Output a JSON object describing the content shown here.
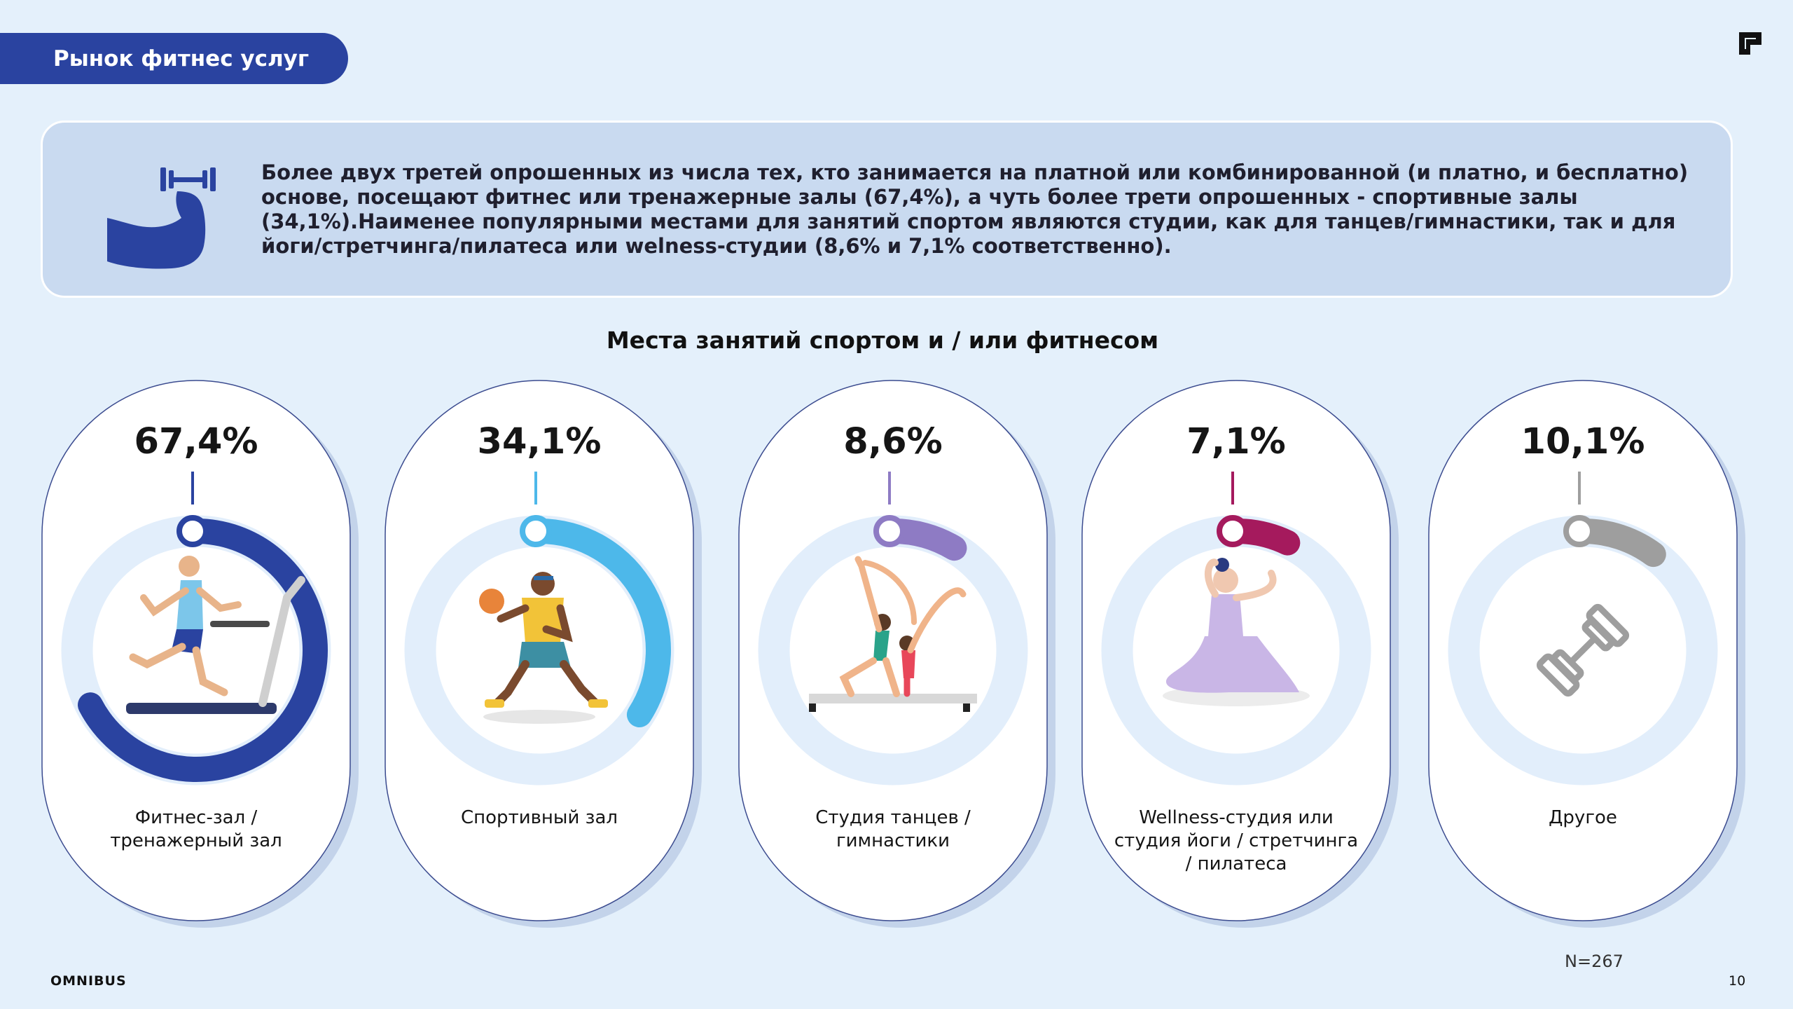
{
  "header": {
    "title": "Рынок фитнес услуг"
  },
  "info": {
    "text": "Более двух третей опрошенных из числа тех, кто занимается на платной или комбинированной (и платно, и бесплатно) основе, посещают фитнес или тренажерные залы (67,4%), а чуть более трети опрошенных - спортивные залы (34,1%).Наименее популярными местами для занятий спортом являются студии, как для танцев/гимнастики, так и для йоги/стретчинга/пилатеса или welness-студии (8,6% и 7,1% соответственно).",
    "icon": "flexed-arm-dumbbell-icon"
  },
  "chart_data": {
    "type": "bar",
    "title": "Места занятий спортом и / или фитнесом",
    "categories": [
      [
        "Фитнес-зал /",
        "тренажерный зал"
      ],
      [
        "Спортивный зал"
      ],
      [
        "Студия танцев /",
        "гимнастики"
      ],
      [
        "Wellness-студия или",
        "студия йоги / стретчинга",
        "/ пилатеса"
      ],
      [
        "Другое"
      ]
    ],
    "values": [
      67.4,
      34.1,
      8.6,
      7.1,
      10.1
    ],
    "value_labels": [
      "67,4%",
      "34,1%",
      "8,6%",
      "7,1%",
      "10,1%"
    ],
    "colors": [
      "#2a43a0",
      "#4db8ea",
      "#8e7bc4",
      "#a51a5d",
      "#9e9e9e"
    ],
    "icons": [
      "treadmill-runner-icon",
      "basketball-player-icon",
      "gymnastics-pair-icon",
      "yoga-woman-icon",
      "dumbbell-icon"
    ],
    "unit": "%",
    "ylim": [
      0,
      100
    ]
  },
  "footer": {
    "sample": "N=267",
    "brand": "OMNIBUS",
    "page": "10"
  }
}
